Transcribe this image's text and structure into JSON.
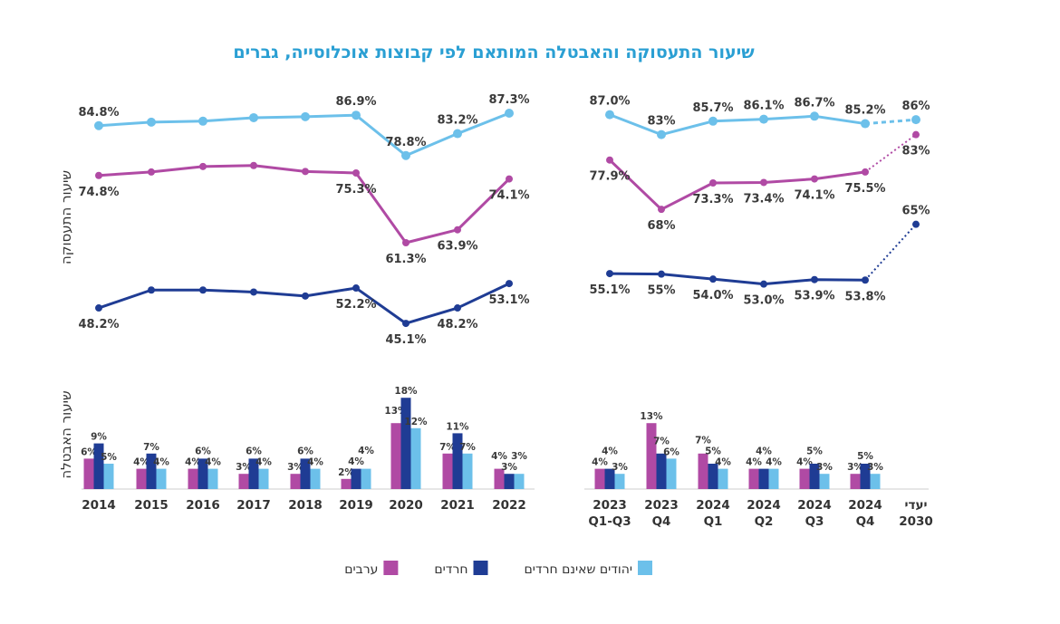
{
  "chart_data": {
    "title": "שיעור התעסוקה והאבטלה המותאם לפי קבוצות אוכלוסייה, גברים",
    "colors": {
      "jews_non_haredi": "#6cc0ea",
      "haredim": "#1f3c94",
      "arabs": "#b04aa4",
      "title": "#2a9fd3"
    },
    "legend": {
      "placement": "bottom",
      "entries": [
        "יהודים שאינם חרדים",
        "חרדים",
        "ערבים"
      ]
    },
    "employment": {
      "type": "line",
      "ylabel": "שיעור התעסוקה",
      "annual": {
        "categories": [
          "2014",
          "2015",
          "2016",
          "2017",
          "2018",
          "2019",
          "2020",
          "2021",
          "2022"
        ],
        "series": [
          {
            "name": "יהודים שאינם חרדים",
            "values": [
              84.8,
              85.5,
              85.7,
              86.4,
              86.6,
              86.9,
              78.8,
              83.2,
              87.3
            ],
            "labels": [
              "84.8%",
              null,
              null,
              null,
              null,
              "86.9%",
              "78.8%",
              "83.2%",
              "87.3%"
            ]
          },
          {
            "name": "ערבים",
            "values": [
              74.8,
              75.5,
              76.6,
              76.8,
              75.6,
              75.3,
              61.3,
              63.9,
              74.1
            ],
            "labels": [
              "74.8%",
              null,
              null,
              null,
              null,
              "75.3%",
              "61.3%",
              "63.9%",
              "74.1%"
            ]
          },
          {
            "name": "חרדים",
            "values": [
              48.2,
              51.8,
              51.8,
              51.4,
              50.6,
              52.2,
              45.1,
              48.2,
              53.1
            ],
            "labels": [
              "48.2%",
              null,
              null,
              null,
              null,
              "52.2%",
              "45.1%",
              "48.2%",
              "53.1%"
            ]
          }
        ]
      },
      "quarterly": {
        "categories": [
          "2023 Q1-Q3",
          "2023 Q4",
          "2024 Q1",
          "2024 Q2",
          "2024 Q3",
          "2024 Q4",
          "יעדי 2030"
        ],
        "series": [
          {
            "name": "יהודים שאינם חרדים",
            "values": [
              87.0,
              83,
              85.7,
              86.1,
              86.7,
              85.2,
              86
            ],
            "labels": [
              "87.0%",
              "83%",
              "85.7%",
              "86.1%",
              "86.7%",
              "85.2%",
              "86%"
            ]
          },
          {
            "name": "ערבים",
            "values": [
              77.9,
              68,
              73.3,
              73.4,
              74.1,
              75.5,
              83
            ],
            "labels": [
              "77.9%",
              "68%",
              "73.3%",
              "73.4%",
              "74.1%",
              "75.5%",
              "83%"
            ]
          },
          {
            "name": "חרדים",
            "values": [
              55.1,
              55,
              54.0,
              53.0,
              53.9,
              53.8,
              65
            ],
            "labels": [
              "55.1%",
              "55%",
              "54.0%",
              "53.0%",
              "53.9%",
              "53.8%",
              "65%"
            ]
          }
        ],
        "target_category": "יעדי 2030"
      }
    },
    "unemployment": {
      "type": "bar",
      "ylabel": "שיעור האבטלה",
      "categories": [
        {
          "line1": "2014",
          "line2": ""
        },
        {
          "line1": "2015",
          "line2": ""
        },
        {
          "line1": "2016",
          "line2": ""
        },
        {
          "line1": "2017",
          "line2": ""
        },
        {
          "line1": "2018",
          "line2": ""
        },
        {
          "line1": "2019",
          "line2": ""
        },
        {
          "line1": "2020",
          "line2": ""
        },
        {
          "line1": "2021",
          "line2": ""
        },
        {
          "line1": "2022",
          "line2": ""
        },
        {
          "line1": "2023",
          "line2": "Q1-Q3"
        },
        {
          "line1": "2023",
          "line2": "Q4"
        },
        {
          "line1": "2024",
          "line2": "Q1"
        },
        {
          "line1": "2024",
          "line2": "Q2"
        },
        {
          "line1": "2024",
          "line2": "Q3"
        },
        {
          "line1": "2024",
          "line2": "Q4"
        },
        {
          "line1": "יעדי",
          "line2": "2030"
        }
      ],
      "series": [
        {
          "name": "ערבים",
          "values": [
            6,
            4,
            4,
            3,
            3,
            2,
            13,
            7,
            4,
            4,
            13,
            7,
            4,
            4,
            3,
            null
          ]
        },
        {
          "name": "חרדים",
          "values": [
            9,
            7,
            6,
            6,
            6,
            4,
            18,
            11,
            3,
            4,
            7,
            5,
            4,
            5,
            5,
            null
          ]
        },
        {
          "name": "יהודים שאינם חרדים",
          "values": [
            5,
            4,
            4,
            4,
            4,
            4,
            12,
            7,
            3,
            3,
            6,
            4,
            4,
            3,
            3,
            null
          ]
        }
      ]
    }
  }
}
